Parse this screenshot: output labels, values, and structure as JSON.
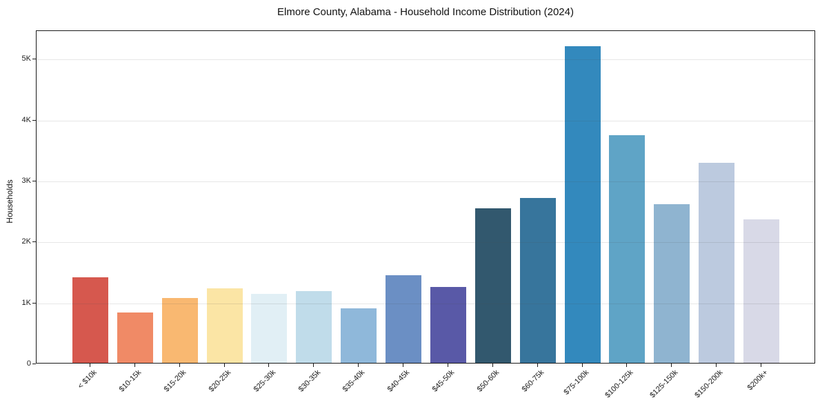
{
  "chart_data": {
    "type": "bar",
    "title": "Elmore County, Alabama - Household Income Distribution (2024)",
    "xlabel": "",
    "ylabel": "Households",
    "categories": [
      "< $10k",
      "$10-15k",
      "$15-20k",
      "$20-25k",
      "$25-30k",
      "$30-35k",
      "$35-40k",
      "$40-45k",
      "$45-50k",
      "$50-60k",
      "$60-75k",
      "$75-100k",
      "$100-125k",
      "$125-150k",
      "$150-200k",
      "$200k+"
    ],
    "values": [
      1400,
      830,
      1060,
      1220,
      1130,
      1180,
      890,
      1440,
      1250,
      2540,
      2710,
      5200,
      3740,
      2600,
      3280,
      2360
    ],
    "bar_colors": [
      "#d6584e",
      "#f08a66",
      "#f9b871",
      "#fbe5a5",
      "#e1eff5",
      "#c0dcea",
      "#8fb8da",
      "#6b8fc4",
      "#5959a7",
      "#32586e",
      "#37759c",
      "#3389bd",
      "#5fa4c6",
      "#8fb4d0",
      "#bccadf",
      "#d8d9e7"
    ],
    "yticks": [
      {
        "value": 0,
        "label": "0"
      },
      {
        "value": 1000,
        "label": "1K"
      },
      {
        "value": 2000,
        "label": "2K"
      },
      {
        "value": 3000,
        "label": "3K"
      },
      {
        "value": 4000,
        "label": "4K"
      },
      {
        "value": 5000,
        "label": "5K"
      }
    ],
    "ylim": [
      0,
      5468
    ],
    "grid": "horizontal",
    "legend": "none",
    "spine_color": "#1a1a1a",
    "background_color": "#ffffff"
  }
}
